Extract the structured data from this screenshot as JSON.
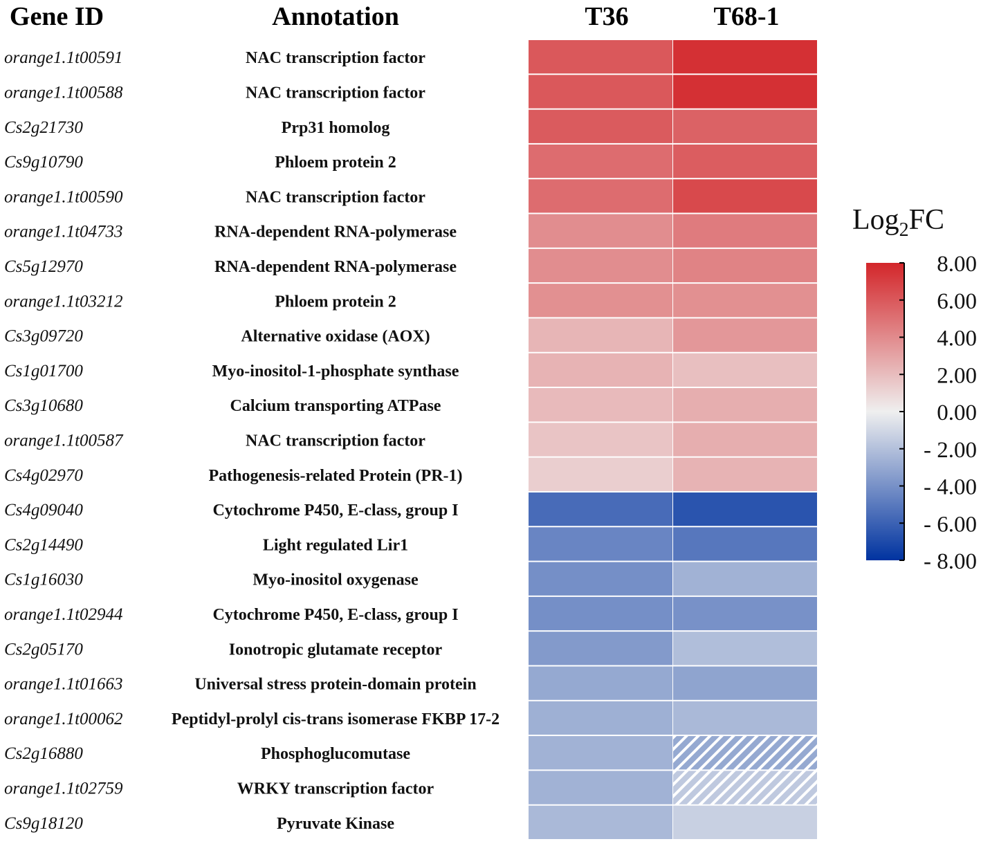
{
  "chart_data": {
    "type": "heatmap",
    "headers": {
      "gene_id": "Gene ID",
      "annotation": "Annotation"
    },
    "columns": [
      "T36",
      "T68-1"
    ],
    "rows": [
      {
        "gene_id": "orange1.1t00591",
        "annotation": "NAC transcription factor",
        "values": [
          6.0,
          7.6
        ]
      },
      {
        "gene_id": "orange1.1t00588",
        "annotation": "NAC transcription factor",
        "values": [
          6.0,
          7.6
        ]
      },
      {
        "gene_id": "Cs2g21730",
        "annotation": "Prp31 homolog",
        "values": [
          5.9,
          5.6
        ]
      },
      {
        "gene_id": "Cs9g10790",
        "annotation": "Phloem protein 2",
        "values": [
          5.2,
          5.8
        ]
      },
      {
        "gene_id": "orange1.1t00590",
        "annotation": "NAC transcription factor",
        "values": [
          5.2,
          6.6
        ]
      },
      {
        "gene_id": "orange1.1t04733",
        "annotation": "RNA-dependent RNA-polymerase",
        "values": [
          3.9,
          4.6
        ]
      },
      {
        "gene_id": "Cs5g12970",
        "annotation": "RNA-dependent RNA-polymerase",
        "values": [
          3.9,
          4.3
        ]
      },
      {
        "gene_id": "orange1.1t03212",
        "annotation": "Phloem protein 2",
        "values": [
          3.8,
          3.8
        ]
      },
      {
        "gene_id": "Cs3g09720",
        "annotation": "Alternative oxidase (AOX)",
        "values": [
          2.3,
          3.5
        ]
      },
      {
        "gene_id": "Cs1g01700",
        "annotation": "Myo-inositol-1-phosphate synthase",
        "values": [
          2.4,
          1.9
        ]
      },
      {
        "gene_id": "Cs3g10680",
        "annotation": "Calcium transporting ATPase",
        "values": [
          2.1,
          2.6
        ]
      },
      {
        "gene_id": "orange1.1t00587",
        "annotation": "NAC transcription factor",
        "values": [
          1.7,
          2.6
        ]
      },
      {
        "gene_id": "Cs4g02970",
        "annotation": "Pathogenesis-related Protein (PR-1)",
        "values": [
          1.3,
          2.4
        ]
      },
      {
        "gene_id": "Cs4g09040",
        "annotation": "Cytochrome P450, E-class, group I",
        "values": [
          -5.6,
          -6.6
        ]
      },
      {
        "gene_id": "Cs2g14490",
        "annotation": "Light regulated Lir1",
        "values": [
          -4.5,
          -5.1
        ]
      },
      {
        "gene_id": "Cs1g16030",
        "annotation": "Myo-inositol oxygenase",
        "values": [
          -4.1,
          -2.6
        ]
      },
      {
        "gene_id": "orange1.1t02944",
        "annotation": "Cytochrome P450, E-class, group I",
        "values": [
          -4.1,
          -4.0
        ]
      },
      {
        "gene_id": "Cs2g05170",
        "annotation": "Ionotropic glutamate receptor",
        "values": [
          -3.6,
          -2.1
        ]
      },
      {
        "gene_id": "orange1.1t01663",
        "annotation": "Universal stress protein-domain protein",
        "values": [
          -3.0,
          -3.2
        ]
      },
      {
        "gene_id": "orange1.1t00062",
        "annotation": "Peptidyl-prolyl cis-trans isomerase FKBP 17-2",
        "values": [
          -2.7,
          -2.3
        ]
      },
      {
        "gene_id": "Cs2g16880",
        "annotation": "Phosphoglucomutase",
        "values": [
          -2.6,
          -3.0
        ],
        "hatched": [
          false,
          true
        ]
      },
      {
        "gene_id": "orange1.1t02759",
        "annotation": "WRKY transcription factor",
        "values": [
          -2.6,
          -1.6
        ],
        "hatched": [
          false,
          true
        ]
      },
      {
        "gene_id": "Cs9g18120",
        "annotation": "Pyruvate Kinase",
        "values": [
          -2.3,
          -1.3
        ]
      }
    ],
    "legend": {
      "title_main": "Log",
      "title_sub": "2",
      "title_end": "FC",
      "range": [
        -8,
        8
      ],
      "ticks": [
        "8.00",
        "6.00",
        "4.00",
        "2.00",
        "0.00",
        "- 2.00",
        "- 4.00",
        "- 6.00",
        "- 8.00"
      ],
      "tick_values": [
        8,
        6,
        4,
        2,
        0,
        -2,
        -4,
        -6,
        -8
      ],
      "colors": {
        "high": "#d3262a",
        "mid": "#efefef",
        "low": "#0033a0"
      },
      "placement": "right"
    }
  }
}
